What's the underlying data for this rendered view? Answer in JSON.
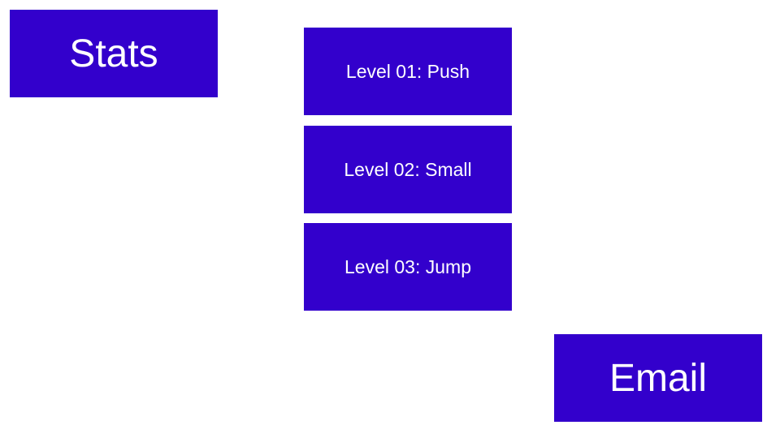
{
  "colors": {
    "button_bg": "#3300cc",
    "button_text": "#ffffff",
    "background": "#ffffff"
  },
  "menu": {
    "stats_label": "Stats",
    "levels": [
      {
        "label": "Level 01: Push"
      },
      {
        "label": "Level 02: Small"
      },
      {
        "label": "Level 03: Jump"
      }
    ],
    "email_label": "Email"
  }
}
